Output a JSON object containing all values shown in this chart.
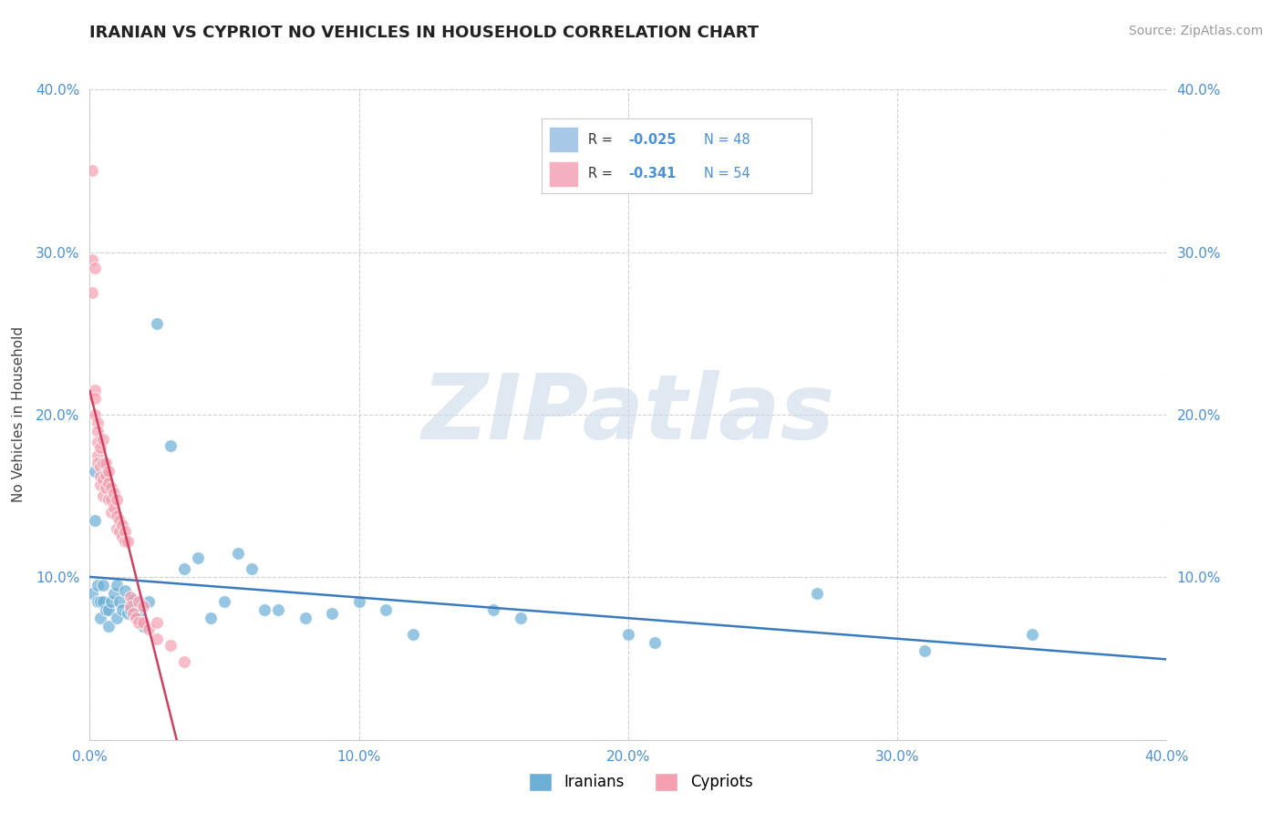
{
  "title": "IRANIAN VS CYPRIOT NO VEHICLES IN HOUSEHOLD CORRELATION CHART",
  "source_text": "Source: ZipAtlas.com",
  "ylabel": "No Vehicles in Household",
  "xlim": [
    0.0,
    0.4
  ],
  "ylim": [
    0.0,
    0.4
  ],
  "iranian_color": "#6baed6",
  "cypriot_color": "#f4a0b0",
  "iranian_line_color": "#3a7abf",
  "cypriot_line_color": "#d04060",
  "watermark_text": "ZIPatlas",
  "watermark_color": "#ccd9e8",
  "background_color": "#ffffff",
  "grid_color": "#cccccc",
  "iranians_x": [
    0.001,
    0.002,
    0.002,
    0.003,
    0.003,
    0.004,
    0.004,
    0.005,
    0.005,
    0.006,
    0.006,
    0.007,
    0.007,
    0.008,
    0.009,
    0.01,
    0.01,
    0.011,
    0.012,
    0.013,
    0.014,
    0.015,
    0.016,
    0.018,
    0.02,
    0.022,
    0.025,
    0.03,
    0.035,
    0.04,
    0.045,
    0.05,
    0.055,
    0.06,
    0.065,
    0.07,
    0.08,
    0.09,
    0.1,
    0.11,
    0.12,
    0.15,
    0.16,
    0.2,
    0.21,
    0.27,
    0.31,
    0.35
  ],
  "iranians_y": [
    0.09,
    0.135,
    0.165,
    0.095,
    0.085,
    0.075,
    0.085,
    0.095,
    0.085,
    0.08,
    0.162,
    0.08,
    0.07,
    0.085,
    0.09,
    0.075,
    0.095,
    0.085,
    0.08,
    0.092,
    0.078,
    0.08,
    0.086,
    0.078,
    0.07,
    0.085,
    0.256,
    0.181,
    0.105,
    0.112,
    0.075,
    0.085,
    0.115,
    0.105,
    0.08,
    0.08,
    0.075,
    0.078,
    0.085,
    0.08,
    0.065,
    0.08,
    0.075,
    0.065,
    0.06,
    0.09,
    0.055,
    0.065
  ],
  "cypriots_x": [
    0.001,
    0.001,
    0.001,
    0.002,
    0.002,
    0.002,
    0.002,
    0.003,
    0.003,
    0.003,
    0.003,
    0.003,
    0.004,
    0.004,
    0.004,
    0.004,
    0.005,
    0.005,
    0.005,
    0.005,
    0.006,
    0.006,
    0.006,
    0.007,
    0.007,
    0.007,
    0.008,
    0.008,
    0.008,
    0.009,
    0.009,
    0.01,
    0.01,
    0.01,
    0.011,
    0.011,
    0.012,
    0.012,
    0.013,
    0.013,
    0.014,
    0.015,
    0.015,
    0.016,
    0.017,
    0.018,
    0.018,
    0.02,
    0.02,
    0.022,
    0.025,
    0.025,
    0.03,
    0.035
  ],
  "cypriots_y": [
    0.35,
    0.295,
    0.275,
    0.29,
    0.215,
    0.21,
    0.2,
    0.195,
    0.19,
    0.183,
    0.175,
    0.17,
    0.18,
    0.168,
    0.162,
    0.157,
    0.185,
    0.17,
    0.16,
    0.15,
    0.17,
    0.163,
    0.155,
    0.165,
    0.158,
    0.148,
    0.155,
    0.148,
    0.14,
    0.152,
    0.143,
    0.148,
    0.138,
    0.13,
    0.135,
    0.128,
    0.132,
    0.125,
    0.128,
    0.122,
    0.122,
    0.088,
    0.082,
    0.078,
    0.075,
    0.085,
    0.072,
    0.082,
    0.072,
    0.068,
    0.072,
    0.062,
    0.058,
    0.048
  ]
}
